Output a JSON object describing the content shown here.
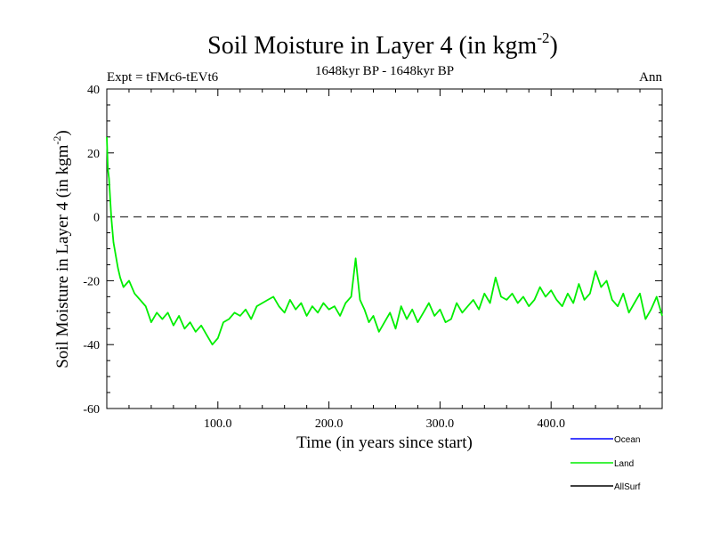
{
  "chart_data": {
    "type": "line",
    "title": "Soil Moisture in Layer 4 (in kgm",
    "title_sup": "-2",
    "title_close": ")",
    "subtitle": "1648kyr BP - 1648kyr BP",
    "left_label": "Expt = tFMc6-tEVt6",
    "right_label": "Ann",
    "xlabel": "Time (in years since start)",
    "ylabel": "Soil Moisture in Layer 4 (in kgm",
    "ylabel_sup": "-2",
    "ylabel_close": ")",
    "xlim": [
      0,
      500
    ],
    "ylim": [
      -60,
      40
    ],
    "x_ticks": [
      100,
      200,
      300,
      400
    ],
    "x_tick_labels": [
      "100.0",
      "200.0",
      "300.0",
      "400.0"
    ],
    "y_ticks": [
      -60,
      -40,
      -20,
      0,
      20,
      40
    ],
    "y_tick_labels": [
      "-60",
      "-40",
      "-20",
      "0",
      "20",
      "40"
    ],
    "reference_line": 0,
    "legend": [
      {
        "name": "Ocean",
        "color": "#0000ff"
      },
      {
        "name": "Land",
        "color": "#00ee00"
      },
      {
        "name": "AllSurf",
        "color": "#000000"
      }
    ],
    "series": [
      {
        "name": "Land",
        "color": "#00ee00",
        "x": [
          0,
          1,
          2,
          4,
          6,
          8,
          10,
          12,
          15,
          20,
          25,
          30,
          35,
          40,
          45,
          50,
          55,
          60,
          65,
          70,
          75,
          80,
          85,
          90,
          95,
          100,
          105,
          110,
          115,
          120,
          125,
          130,
          135,
          140,
          145,
          150,
          155,
          160,
          165,
          170,
          175,
          180,
          185,
          190,
          195,
          200,
          205,
          210,
          215,
          220,
          224,
          228,
          232,
          236,
          240,
          245,
          250,
          255,
          260,
          265,
          270,
          275,
          280,
          285,
          290,
          295,
          300,
          305,
          310,
          315,
          320,
          325,
          330,
          335,
          340,
          345,
          350,
          355,
          360,
          365,
          370,
          375,
          380,
          385,
          390,
          395,
          400,
          405,
          410,
          415,
          420,
          425,
          430,
          435,
          440,
          445,
          450,
          455,
          460,
          465,
          470,
          475,
          480,
          485,
          490,
          495,
          500
        ],
        "values": [
          25,
          15,
          12,
          0,
          -8,
          -12,
          -16,
          -19,
          -22,
          -20,
          -24,
          -26,
          -28,
          -33,
          -30,
          -32,
          -30,
          -34,
          -31,
          -35,
          -33,
          -36,
          -34,
          -37,
          -40,
          -38,
          -33,
          -32,
          -30,
          -31,
          -29,
          -32,
          -28,
          -27,
          -26,
          -25,
          -28,
          -30,
          -26,
          -29,
          -27,
          -31,
          -28,
          -30,
          -27,
          -29,
          -28,
          -31,
          -27,
          -25,
          -13,
          -26,
          -29,
          -33,
          -31,
          -36,
          -33,
          -30,
          -35,
          -28,
          -32,
          -29,
          -33,
          -30,
          -27,
          -31,
          -29,
          -33,
          -32,
          -27,
          -30,
          -28,
          -26,
          -29,
          -24,
          -27,
          -19,
          -25,
          -26,
          -24,
          -27,
          -25,
          -28,
          -26,
          -22,
          -25,
          -23,
          -26,
          -28,
          -24,
          -27,
          -21,
          -26,
          -24,
          -17,
          -22,
          -20,
          -26,
          -28,
          -24,
          -30,
          -27,
          -24,
          -32,
          -29,
          -25,
          -31
        ]
      }
    ]
  }
}
